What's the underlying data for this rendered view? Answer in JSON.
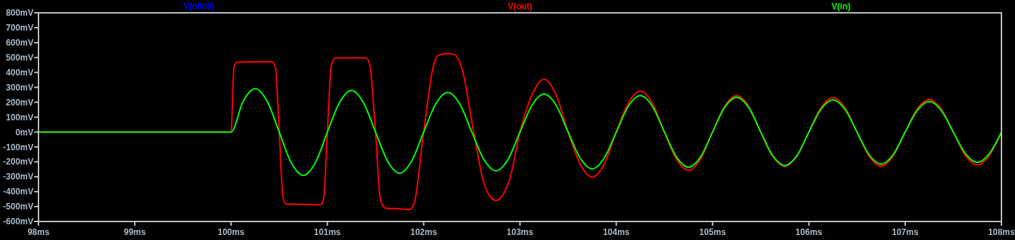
{
  "chart_data": {
    "type": "line",
    "xlim": [
      98,
      108
    ],
    "xticks": [
      {
        "value": 98,
        "label": "98ms"
      },
      {
        "value": 99,
        "label": "99ms"
      },
      {
        "value": 100,
        "label": "100ms"
      },
      {
        "value": 101,
        "label": "101ms"
      },
      {
        "value": 102,
        "label": "102ms"
      },
      {
        "value": 103,
        "label": "103ms"
      },
      {
        "value": 104,
        "label": "104ms"
      },
      {
        "value": 105,
        "label": "105ms"
      },
      {
        "value": 106,
        "label": "106ms"
      },
      {
        "value": 107,
        "label": "107ms"
      },
      {
        "value": 108,
        "label": "108ms"
      }
    ],
    "ylim": [
      -600,
      800
    ],
    "yticks": [
      {
        "value": 800,
        "label": "800mV"
      },
      {
        "value": 700,
        "label": "700mV"
      },
      {
        "value": 600,
        "label": "600mV"
      },
      {
        "value": 500,
        "label": "500mV"
      },
      {
        "value": 400,
        "label": "400mV"
      },
      {
        "value": 300,
        "label": "300mV"
      },
      {
        "value": 200,
        "label": "200mV"
      },
      {
        "value": 100,
        "label": "100mV"
      },
      {
        "value": 0,
        "label": "0mV"
      },
      {
        "value": -100,
        "label": "-100mV"
      },
      {
        "value": -200,
        "label": "-200mV"
      },
      {
        "value": -300,
        "label": "-300mV"
      },
      {
        "value": -400,
        "label": "-400mV"
      },
      {
        "value": -500,
        "label": "-500mV"
      },
      {
        "value": -600,
        "label": "-600mV"
      }
    ],
    "grid": false,
    "legend": "top",
    "series": [
      {
        "name": "V(n009)",
        "color": "#0000ff"
      },
      {
        "name": "V(out)",
        "color": "#ff0000",
        "x": [
          98,
          100,
          100.03,
          100.06,
          100.2,
          100.42,
          100.46,
          100.5,
          100.54,
          100.57,
          100.75,
          100.93,
          100.96,
          101,
          101.04,
          101.08,
          101.25,
          101.4,
          101.44,
          101.5,
          101.55,
          101.6,
          101.75,
          101.85,
          101.9,
          102,
          102.1,
          102.15,
          102.25,
          102.32,
          102.4,
          102.52,
          102.62,
          102.7,
          102.75,
          102.8,
          102.9,
          103,
          103.125,
          103.25,
          103.375,
          103.5,
          103.625,
          103.75,
          103.875,
          104,
          104.125,
          104.25,
          104.375,
          104.5,
          104.625,
          104.75,
          104.875,
          105,
          105.125,
          105.25,
          105.375,
          105.5,
          105.625,
          105.75,
          105.875,
          106,
          106.125,
          106.25,
          106.375,
          106.5,
          106.625,
          106.75,
          106.875,
          107,
          107.125,
          107.25,
          107.375,
          107.5,
          107.625,
          107.75,
          107.875,
          108
        ],
        "values": [
          0,
          0,
          440,
          468,
          472,
          472,
          440,
          0,
          -440,
          -483,
          -485,
          -488,
          -450,
          0,
          440,
          496,
          498,
          498,
          450,
          0,
          -450,
          -510,
          -515,
          -520,
          -480,
          0,
          440,
          515,
          528,
          520,
          420,
          0,
          -330,
          -440,
          -459,
          -440,
          -300,
          0,
          250,
          355,
          250,
          0,
          -215,
          -302,
          -215,
          0,
          194,
          274,
          194,
          0,
          -182,
          -257,
          -182,
          0,
          173,
          244,
          173,
          0,
          -163,
          -230,
          -163,
          0,
          163,
          231,
          163,
          0,
          -161,
          -228,
          -161,
          0,
          154,
          218,
          154,
          0,
          -156,
          -221,
          -156,
          0
        ]
      },
      {
        "name": "V(in)",
        "color": "#00ff00",
        "x": [
          98,
          100,
          100.125,
          100.25,
          100.375,
          100.5,
          100.625,
          100.75,
          100.875,
          101,
          101.125,
          101.25,
          101.375,
          101.5,
          101.625,
          101.75,
          101.875,
          102,
          102.125,
          102.25,
          102.375,
          102.5,
          102.625,
          102.75,
          102.875,
          103,
          103.125,
          103.25,
          103.375,
          103.5,
          103.625,
          103.75,
          103.875,
          104,
          104.125,
          104.25,
          104.375,
          104.5,
          104.625,
          104.75,
          104.875,
          105,
          105.125,
          105.25,
          105.375,
          105.5,
          105.625,
          105.75,
          105.875,
          106,
          106.125,
          106.25,
          106.375,
          106.5,
          106.625,
          106.75,
          106.875,
          107,
          107.125,
          107.25,
          107.375,
          107.5,
          107.625,
          107.75,
          107.875,
          108
        ],
        "values": [
          0,
          0,
          206,
          291,
          206,
          0,
          -206,
          -291,
          -206,
          0,
          197,
          279,
          197,
          0,
          -195,
          -276,
          -195,
          0,
          188,
          266,
          188,
          0,
          -184,
          -260,
          -184,
          0,
          180,
          255,
          180,
          0,
          -175,
          -247,
          -175,
          0,
          173,
          244,
          173,
          0,
          -167,
          -236,
          -167,
          0,
          165,
          234,
          165,
          0,
          -159,
          -225,
          -159,
          0,
          153,
          216,
          153,
          0,
          -152,
          -215,
          -152,
          0,
          145,
          205,
          145,
          0,
          -144,
          -204,
          -144,
          0
        ]
      }
    ]
  }
}
